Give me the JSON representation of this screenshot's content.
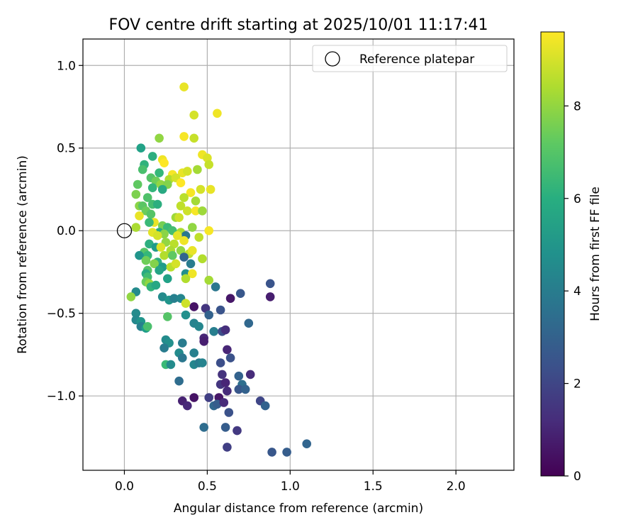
{
  "chart_data": {
    "type": "scatter",
    "title": "FOV centre drift starting at 2025/10/01 11:17:41",
    "xlabel": "Angular distance from reference (arcmin)",
    "ylabel": "Rotation from reference (arcmin)",
    "xlim": [
      -0.25,
      2.35
    ],
    "ylim": [
      -1.45,
      1.16
    ],
    "x_ticks": [
      0.0,
      0.5,
      1.0,
      1.5,
      2.0
    ],
    "x_tick_labels": [
      "0.0",
      "0.5",
      "1.0",
      "1.5",
      "2.0"
    ],
    "y_ticks": [
      1.0,
      0.5,
      0.0,
      -0.5,
      -1.0
    ],
    "y_tick_labels": [
      "1.0",
      "0.5",
      "0.0",
      "−0.5",
      "−1.0"
    ],
    "grid": true,
    "legend": {
      "position": "top-right",
      "entries": [
        "Reference platepar"
      ]
    },
    "reference_point": {
      "x": 0.0,
      "y": 0.0,
      "label": "Reference platepar"
    },
    "colorbar": {
      "label": "Hours from first FF file",
      "range": [
        0,
        9.6
      ],
      "ticks": [
        0,
        2,
        4,
        6,
        8
      ],
      "tick_labels": [
        "0",
        "2",
        "4",
        "6",
        "8"
      ],
      "colormap": "viridis"
    },
    "points": [
      [
        0.36,
        0.87,
        9.3
      ],
      [
        0.42,
        0.7,
        9.0
      ],
      [
        0.56,
        0.71,
        9.4
      ],
      [
        0.36,
        0.57,
        9.5
      ],
      [
        0.42,
        0.56,
        8.8
      ],
      [
        0.21,
        0.56,
        8.0
      ],
      [
        0.1,
        0.5,
        5.5
      ],
      [
        0.47,
        0.46,
        9.4
      ],
      [
        0.5,
        0.44,
        9.1
      ],
      [
        0.17,
        0.45,
        6.0
      ],
      [
        0.23,
        0.43,
        9.4
      ],
      [
        0.51,
        0.4,
        8.8
      ],
      [
        0.12,
        0.4,
        6.2
      ],
      [
        0.24,
        0.41,
        9.6
      ],
      [
        0.11,
        0.37,
        6.8
      ],
      [
        0.21,
        0.35,
        6.4
      ],
      [
        0.29,
        0.34,
        9.5
      ],
      [
        0.35,
        0.35,
        9.3
      ],
      [
        0.38,
        0.36,
        9.0
      ],
      [
        0.44,
        0.37,
        8.3
      ],
      [
        0.27,
        0.31,
        8.5
      ],
      [
        0.31,
        0.32,
        9.0
      ],
      [
        0.16,
        0.32,
        7.0
      ],
      [
        0.19,
        0.3,
        7.5
      ],
      [
        0.08,
        0.28,
        7.2
      ],
      [
        0.22,
        0.28,
        8.0
      ],
      [
        0.26,
        0.28,
        7.8
      ],
      [
        0.34,
        0.29,
        9.6
      ],
      [
        0.17,
        0.26,
        6.3
      ],
      [
        0.23,
        0.25,
        5.8
      ],
      [
        0.07,
        0.22,
        7.7
      ],
      [
        0.4,
        0.23,
        9.5
      ],
      [
        0.46,
        0.25,
        9.0
      ],
      [
        0.52,
        0.25,
        9.3
      ],
      [
        0.36,
        0.2,
        8.6
      ],
      [
        0.43,
        0.18,
        8.3
      ],
      [
        0.14,
        0.2,
        6.9
      ],
      [
        0.17,
        0.16,
        6.7
      ],
      [
        0.09,
        0.15,
        7.9
      ],
      [
        0.11,
        0.15,
        7.1
      ],
      [
        0.2,
        0.16,
        6.0
      ],
      [
        0.34,
        0.15,
        8.7
      ],
      [
        0.38,
        0.12,
        8.9
      ],
      [
        0.43,
        0.12,
        9.5
      ],
      [
        0.47,
        0.12,
        8.2
      ],
      [
        0.13,
        0.12,
        7.4
      ],
      [
        0.09,
        0.09,
        9.3
      ],
      [
        0.16,
        0.1,
        7.0
      ],
      [
        0.31,
        0.08,
        8.2
      ],
      [
        0.33,
        0.08,
        8.9
      ],
      [
        0.18,
        0.05,
        9.3
      ],
      [
        0.15,
        0.05,
        6.5
      ],
      [
        0.07,
        0.02,
        8.4
      ],
      [
        0.23,
        0.03,
        7.6
      ],
      [
        0.26,
        0.02,
        6.5
      ],
      [
        0.41,
        0.02,
        8.0
      ],
      [
        0.29,
        0.0,
        6.7
      ],
      [
        0.21,
        -0.01,
        5.8
      ],
      [
        0.24,
        -0.02,
        7.9
      ],
      [
        0.34,
        -0.01,
        8.4
      ],
      [
        0.17,
        -0.01,
        9.2
      ],
      [
        0.2,
        -0.03,
        9.0
      ],
      [
        0.37,
        -0.03,
        3.8
      ],
      [
        0.45,
        -0.04,
        8.7
      ],
      [
        0.51,
        0.0,
        9.5
      ],
      [
        0.32,
        -0.03,
        9.2
      ],
      [
        0.36,
        -0.06,
        9.4
      ],
      [
        0.25,
        -0.07,
        8.0
      ],
      [
        0.3,
        -0.08,
        8.6
      ],
      [
        0.15,
        -0.08,
        6.0
      ],
      [
        0.19,
        -0.1,
        5.2
      ],
      [
        0.22,
        -0.1,
        9.1
      ],
      [
        0.28,
        -0.12,
        8.4
      ],
      [
        0.34,
        -0.12,
        8.0
      ],
      [
        0.39,
        -0.14,
        8.7
      ],
      [
        0.41,
        -0.12,
        9.3
      ],
      [
        0.12,
        -0.13,
        7.0
      ],
      [
        0.14,
        -0.15,
        6.4
      ],
      [
        0.09,
        -0.15,
        5.0
      ],
      [
        0.24,
        -0.15,
        8.5
      ],
      [
        0.29,
        -0.15,
        7.2
      ],
      [
        0.36,
        -0.16,
        3.1
      ],
      [
        0.47,
        -0.17,
        8.5
      ],
      [
        0.2,
        -0.19,
        6.0
      ],
      [
        0.13,
        -0.18,
        7.5
      ],
      [
        0.18,
        -0.2,
        7.8
      ],
      [
        0.23,
        -0.22,
        5.2
      ],
      [
        0.28,
        -0.22,
        8.6
      ],
      [
        0.31,
        -0.2,
        9.0
      ],
      [
        0.4,
        -0.2,
        4.0
      ],
      [
        0.14,
        -0.24,
        7.0
      ],
      [
        0.21,
        -0.24,
        5.6
      ],
      [
        0.13,
        -0.26,
        5.8
      ],
      [
        0.37,
        -0.26,
        4.8
      ],
      [
        0.41,
        -0.26,
        9.4
      ],
      [
        0.14,
        -0.28,
        6.6
      ],
      [
        0.26,
        -0.29,
        5.5
      ],
      [
        0.37,
        -0.29,
        8.5
      ],
      [
        0.13,
        -0.31,
        7.4
      ],
      [
        0.15,
        -0.32,
        8.0
      ],
      [
        0.16,
        -0.34,
        6.2
      ],
      [
        0.19,
        -0.33,
        5.7
      ],
      [
        0.51,
        -0.3,
        8.3
      ],
      [
        0.55,
        -0.34,
        3.8
      ],
      [
        0.07,
        -0.37,
        4.6
      ],
      [
        0.04,
        -0.4,
        8.0
      ],
      [
        0.23,
        -0.4,
        4.6
      ],
      [
        0.27,
        -0.42,
        5.0
      ],
      [
        0.3,
        -0.41,
        4.2
      ],
      [
        0.34,
        -0.41,
        4.4
      ],
      [
        0.37,
        -0.44,
        8.9
      ],
      [
        0.7,
        -0.38,
        2.6
      ],
      [
        0.64,
        -0.41,
        0.6
      ],
      [
        0.88,
        -0.4,
        0.8
      ],
      [
        0.88,
        -0.32,
        2.5
      ],
      [
        0.42,
        -0.46,
        0.5
      ],
      [
        0.49,
        -0.47,
        1.5
      ],
      [
        0.58,
        -0.48,
        2.5
      ],
      [
        0.07,
        -0.5,
        4.6
      ],
      [
        0.37,
        -0.51,
        4.8
      ],
      [
        0.51,
        -0.51,
        3.0
      ],
      [
        0.26,
        -0.52,
        7.0
      ],
      [
        0.07,
        -0.54,
        4.5
      ],
      [
        0.1,
        -0.55,
        5.0
      ],
      [
        0.42,
        -0.56,
        4.3
      ],
      [
        0.45,
        -0.58,
        4.4
      ],
      [
        0.75,
        -0.56,
        3.2
      ],
      [
        0.1,
        -0.58,
        4.2
      ],
      [
        0.13,
        -0.59,
        5.3
      ],
      [
        0.14,
        -0.58,
        6.8
      ],
      [
        0.54,
        -0.61,
        4.1
      ],
      [
        0.59,
        -0.61,
        2.3
      ],
      [
        0.61,
        -0.6,
        1.3
      ],
      [
        0.48,
        -0.65,
        1.0
      ],
      [
        0.48,
        -0.67,
        0.8
      ],
      [
        0.25,
        -0.66,
        4.6
      ],
      [
        0.35,
        -0.68,
        4.0
      ],
      [
        0.27,
        -0.68,
        4.8
      ],
      [
        0.24,
        -0.71,
        4.0
      ],
      [
        0.62,
        -0.72,
        1.0
      ],
      [
        0.33,
        -0.74,
        4.6
      ],
      [
        0.42,
        -0.74,
        4.2
      ],
      [
        0.35,
        -0.77,
        3.8
      ],
      [
        0.64,
        -0.77,
        2.4
      ],
      [
        0.25,
        -0.81,
        6.5
      ],
      [
        0.28,
        -0.81,
        4.6
      ],
      [
        0.42,
        -0.81,
        4.4
      ],
      [
        0.45,
        -0.8,
        4.0
      ],
      [
        0.47,
        -0.8,
        4.3
      ],
      [
        0.58,
        -0.8,
        2.3
      ],
      [
        0.59,
        -0.87,
        1.4
      ],
      [
        0.69,
        -0.88,
        3.0
      ],
      [
        0.76,
        -0.87,
        1.2
      ],
      [
        0.33,
        -0.91,
        3.4
      ],
      [
        0.58,
        -0.93,
        1.5
      ],
      [
        0.61,
        -0.92,
        1.0
      ],
      [
        0.71,
        -0.93,
        3.5
      ],
      [
        0.69,
        -0.96,
        2.6
      ],
      [
        0.62,
        -0.97,
        1.2
      ],
      [
        0.73,
        -0.96,
        3.0
      ],
      [
        0.57,
        -1.01,
        0.6
      ],
      [
        0.51,
        -1.01,
        1.8
      ],
      [
        0.42,
        -1.01,
        0.5
      ],
      [
        0.82,
        -1.03,
        2.0
      ],
      [
        0.35,
        -1.03,
        0.9
      ],
      [
        0.38,
        -1.06,
        1.1
      ],
      [
        0.54,
        -1.06,
        3.2
      ],
      [
        0.56,
        -1.05,
        2.8
      ],
      [
        0.6,
        -1.04,
        1.2
      ],
      [
        0.63,
        -1.1,
        2.4
      ],
      [
        0.85,
        -1.06,
        3.0
      ],
      [
        0.48,
        -1.19,
        3.4
      ],
      [
        0.61,
        -1.19,
        2.8
      ],
      [
        0.68,
        -1.21,
        1.6
      ],
      [
        0.62,
        -1.31,
        1.8
      ],
      [
        0.89,
        -1.34,
        2.6
      ],
      [
        0.98,
        -1.34,
        2.8
      ],
      [
        1.1,
        -1.29,
        3.1
      ]
    ]
  }
}
